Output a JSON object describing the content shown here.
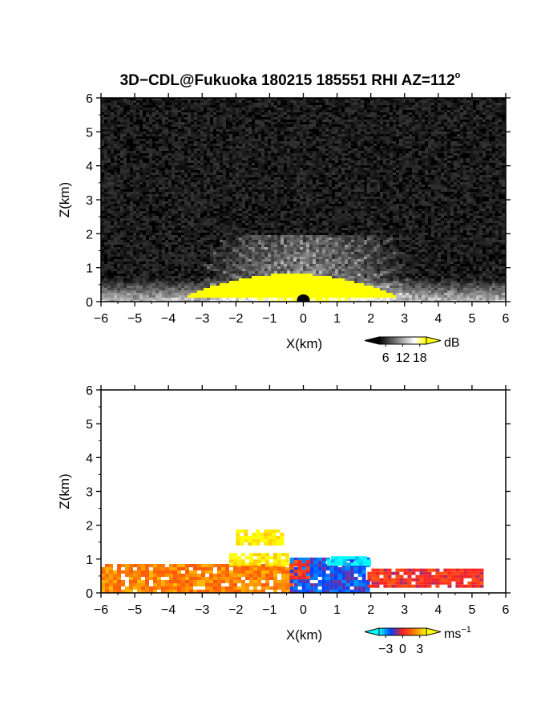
{
  "title": {
    "main": "3D−CDL@Fukuoka 180215 185551 RHI AZ=112",
    "sup": "o"
  },
  "chart_data": [
    {
      "type": "heatmap",
      "quantity": "backscatter intensity",
      "xlabel": "X(km)",
      "ylabel": "Z(km)",
      "xlim": [
        -6,
        6
      ],
      "ylim": [
        0,
        6
      ],
      "xticks": [
        -6,
        -5,
        -4,
        -3,
        -2,
        -1,
        0,
        1,
        2,
        3,
        4,
        5,
        6
      ],
      "yticks": [
        0,
        1,
        2,
        3,
        4,
        5,
        6
      ],
      "colorbar": {
        "unit": "dB",
        "ticks": [
          6,
          12,
          18
        ],
        "colors": [
          "#000000",
          "#555555",
          "#aaaaaa",
          "#ffffff",
          "#ffff00"
        ]
      },
      "field": {
        "background_db": 2,
        "saturated_region": {
          "x": [
            -3.5,
            2.7
          ],
          "z_max": 0.85,
          "db": 20
        },
        "surface_layer": {
          "x": [
            -6,
            6
          ],
          "z_max": 0.7
        },
        "radial_streaks_top_km": 2.0,
        "blanked_center": {
          "x": 0,
          "z": 0
        }
      }
    },
    {
      "type": "heatmap",
      "quantity": "radial velocity",
      "xlabel": "X(km)",
      "ylabel": "Z(km)",
      "xlim": [
        -6,
        6
      ],
      "ylim": [
        0,
        6
      ],
      "xticks": [
        -6,
        -5,
        -4,
        -3,
        -2,
        -1,
        0,
        1,
        2,
        3,
        4,
        5,
        6
      ],
      "yticks": [
        0,
        1,
        2,
        3,
        4,
        5,
        6
      ],
      "colorbar": {
        "unit": "ms",
        "unit_sup": "−1",
        "ticks": [
          -3,
          0,
          3
        ],
        "tick_labels": [
          "−3",
          "0",
          "3"
        ],
        "colors": [
          "#00ffff",
          "#0040ff",
          "#ff2020",
          "#ff8000",
          "#ffff00"
        ]
      },
      "regions": [
        {
          "x": [
            -6.0,
            -0.4
          ],
          "z": [
            0.0,
            0.8
          ],
          "v": 1.5
        },
        {
          "x": [
            -2.2,
            -0.5
          ],
          "z": [
            0.8,
            1.15
          ],
          "v": 3.0
        },
        {
          "x": [
            -2.0,
            -0.6
          ],
          "z": [
            1.4,
            1.85
          ],
          "v": 3.0
        },
        {
          "x": [
            -0.4,
            1.9
          ],
          "z": [
            0.0,
            1.0
          ],
          "v": -1.5
        },
        {
          "x": [
            0.7,
            1.9
          ],
          "z": [
            0.8,
            1.0
          ],
          "v": -3.0
        },
        {
          "x": [
            1.9,
            5.3
          ],
          "z": [
            0.15,
            0.65
          ],
          "v": 0.2
        },
        {
          "x": [
            -0.4,
            0.1
          ],
          "z": [
            0.4,
            0.9
          ],
          "v": 0.3
        }
      ]
    }
  ]
}
